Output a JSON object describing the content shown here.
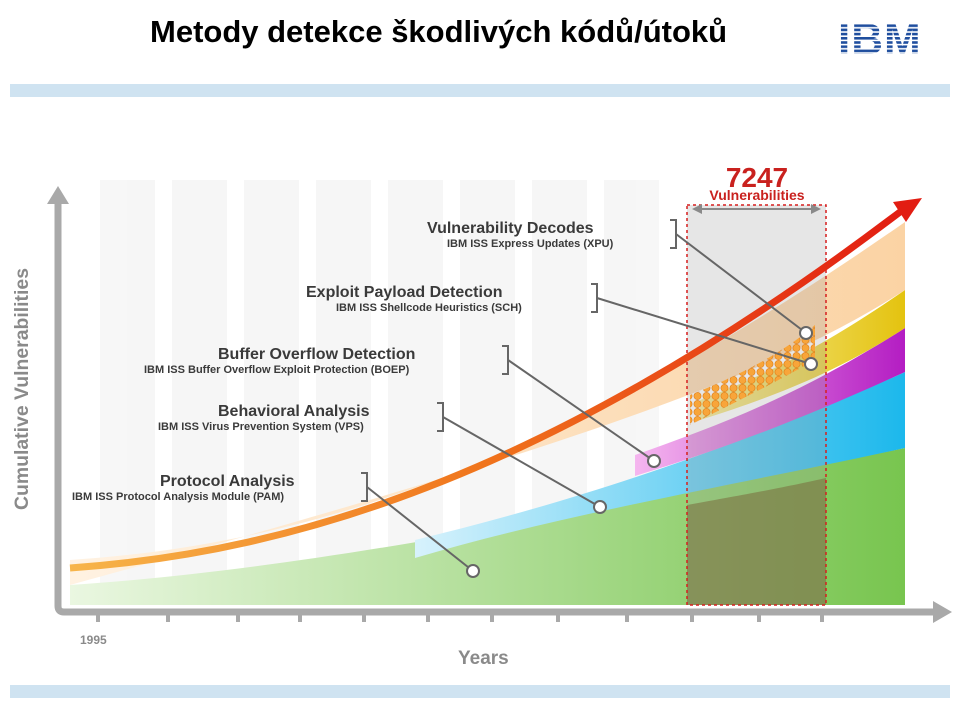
{
  "slide": {
    "title": "Metody detekce škodlivých kódů/útoků",
    "logo_text": "IBM"
  },
  "diagram": {
    "y_axis_label": "Cumulative Vulnerabilities",
    "x_axis_label": "Years",
    "x_start_label": "1995",
    "highlight": {
      "count": "7247",
      "label": "Vulnerabilities"
    },
    "layers": [
      {
        "name": "Vulnerability Decodes",
        "product": "IBM ISS Express Updates (XPU)",
        "color": "#f39a1f"
      },
      {
        "name": "Exploit Payload Detection",
        "product": "IBM ISS Shellcode Heuristics (SCH)",
        "color": "#e6c61c"
      },
      {
        "name": "Buffer Overflow Detection",
        "product": "IBM ISS Buffer Overflow Exploit Protection (BOEP)",
        "color": "#d33bd0"
      },
      {
        "name": "Behavioral Analysis",
        "product": "IBM ISS Virus Prevention System (VPS)",
        "color": "#34c3ee"
      },
      {
        "name": "Protocol Analysis",
        "product": "IBM ISS Protocol Analysis Module (PAM)",
        "color": "#9bd877"
      }
    ],
    "colors": {
      "trend_arrow": "#e83515",
      "axis": "#a9a9a9",
      "highlight_border": "#d61f1f"
    }
  }
}
